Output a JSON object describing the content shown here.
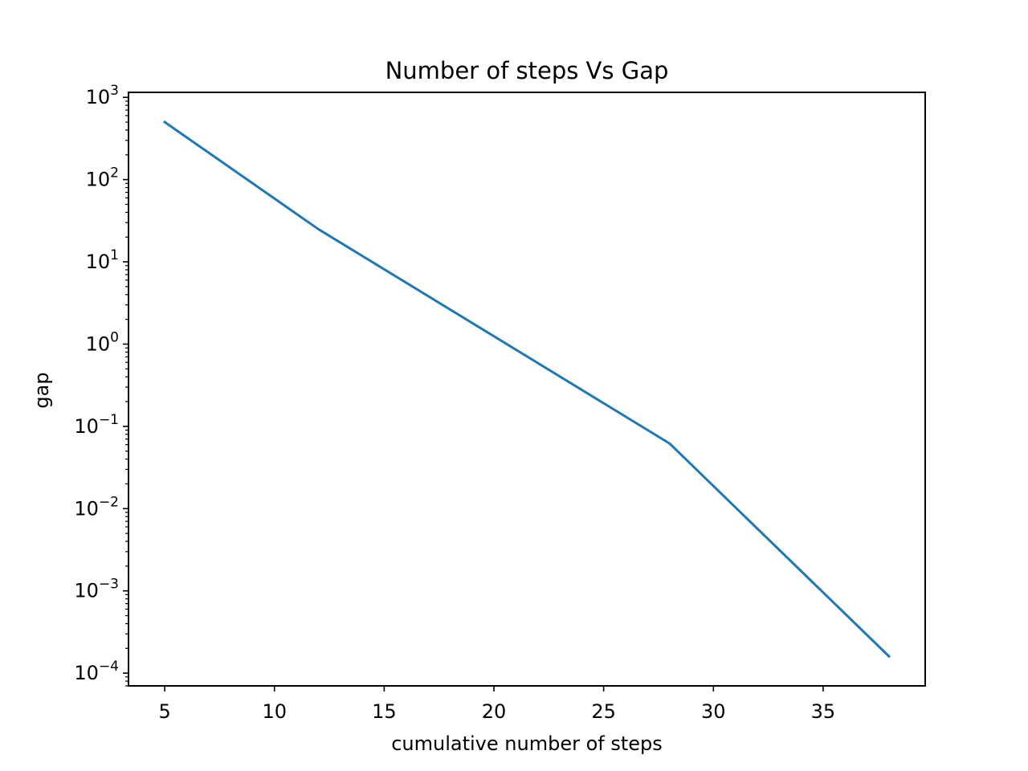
{
  "chart_data": {
    "type": "line",
    "title": "Number of steps Vs Gap",
    "xlabel": "cumulative number of steps",
    "ylabel": "gap",
    "xscale": "linear",
    "yscale": "log",
    "xlim": [
      3.35,
      39.65
    ],
    "ylim": [
      7e-05,
      1150
    ],
    "xticks": [
      5,
      10,
      15,
      20,
      25,
      30,
      35
    ],
    "xtick_labels": [
      "5",
      "10",
      "15",
      "20",
      "25",
      "30",
      "35"
    ],
    "yticks": [
      0.0001,
      0.001,
      0.01,
      0.1,
      1,
      10,
      100,
      1000
    ],
    "ytick_labels": [
      {
        "base": "10",
        "exp": "−4"
      },
      {
        "base": "10",
        "exp": "−3"
      },
      {
        "base": "10",
        "exp": "−2"
      },
      {
        "base": "10",
        "exp": "−1"
      },
      {
        "base": "10",
        "exp": "0"
      },
      {
        "base": "10",
        "exp": "1"
      },
      {
        "base": "10",
        "exp": "2"
      },
      {
        "base": "10",
        "exp": "3"
      }
    ],
    "grid": false,
    "series": [
      {
        "color": "#1f77b4",
        "x": [
          5,
          12,
          28,
          38
        ],
        "y": [
          500,
          25,
          0.062,
          0.00016
        ]
      }
    ]
  }
}
